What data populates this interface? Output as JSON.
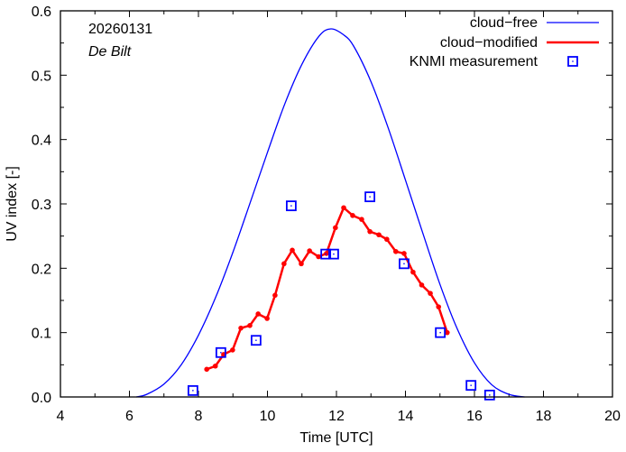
{
  "chart_data": {
    "type": "line",
    "title": "",
    "xlabel": "Time  [UTC]",
    "ylabel": "UV index  [-]",
    "xlim": [
      4,
      20
    ],
    "ylim": [
      0,
      0.6
    ],
    "x_ticks": [
      4,
      6,
      8,
      10,
      12,
      14,
      16,
      18,
      20
    ],
    "x_tick_labels": [
      "4",
      "6",
      "8",
      "10",
      "12",
      "14",
      "16",
      "18",
      "20"
    ],
    "y_ticks": [
      0.0,
      0.1,
      0.2,
      0.3,
      0.4,
      0.5,
      0.6
    ],
    "y_tick_labels": [
      "0.0",
      "0.1",
      "0.2",
      "0.3",
      "0.4",
      "0.5",
      "0.6"
    ],
    "grid": false,
    "legend_position": "top-right",
    "annotations": {
      "date": "20260131",
      "location": "De Bilt"
    },
    "colors": {
      "cloud_free": "#0000ff",
      "cloud_modified": "#ff0000",
      "measurement": "#0000ff"
    },
    "series": [
      {
        "name": "cloud−free",
        "style": "line",
        "peak_x": 11.84,
        "peak_y": 0.572,
        "start_x": 6.2,
        "end_x": 17.45,
        "x": [
          6.2,
          6.5,
          7.0,
          7.5,
          8.0,
          8.5,
          9.0,
          9.5,
          10.0,
          10.5,
          11.0,
          11.5,
          11.84,
          12.2,
          12.5,
          13.0,
          13.5,
          14.0,
          14.5,
          15.0,
          15.5,
          16.0,
          16.5,
          17.0,
          17.45
        ],
        "y": [
          0.0,
          0.004,
          0.02,
          0.05,
          0.096,
          0.155,
          0.225,
          0.302,
          0.38,
          0.455,
          0.517,
          0.561,
          0.572,
          0.563,
          0.545,
          0.49,
          0.418,
          0.337,
          0.255,
          0.175,
          0.106,
          0.053,
          0.019,
          0.004,
          0.0
        ]
      },
      {
        "name": "cloud−modified",
        "style": "line-points",
        "x": [
          8.24,
          8.49,
          8.73,
          8.99,
          9.23,
          9.49,
          9.73,
          9.99,
          10.22,
          10.48,
          10.72,
          10.98,
          11.22,
          11.48,
          11.71,
          11.97,
          12.21,
          12.47,
          12.73,
          12.97,
          13.23,
          13.46,
          13.72,
          13.96,
          14.22,
          14.47,
          14.72,
          14.96,
          15.21
        ],
        "y": [
          0.043,
          0.048,
          0.066,
          0.073,
          0.107,
          0.111,
          0.129,
          0.122,
          0.158,
          0.207,
          0.228,
          0.207,
          0.227,
          0.218,
          0.223,
          0.263,
          0.294,
          0.282,
          0.276,
          0.257,
          0.252,
          0.245,
          0.226,
          0.223,
          0.194,
          0.174,
          0.161,
          0.14,
          0.1
        ]
      },
      {
        "name": "KNMI measurement",
        "style": "points",
        "x": [
          7.84,
          8.65,
          9.67,
          10.69,
          11.69,
          11.92,
          12.97,
          13.96,
          15.01,
          15.9,
          16.44
        ],
        "y": [
          0.01,
          0.069,
          0.088,
          0.297,
          0.222,
          0.222,
          0.311,
          0.207,
          0.1,
          0.018,
          0.003
        ]
      }
    ]
  }
}
